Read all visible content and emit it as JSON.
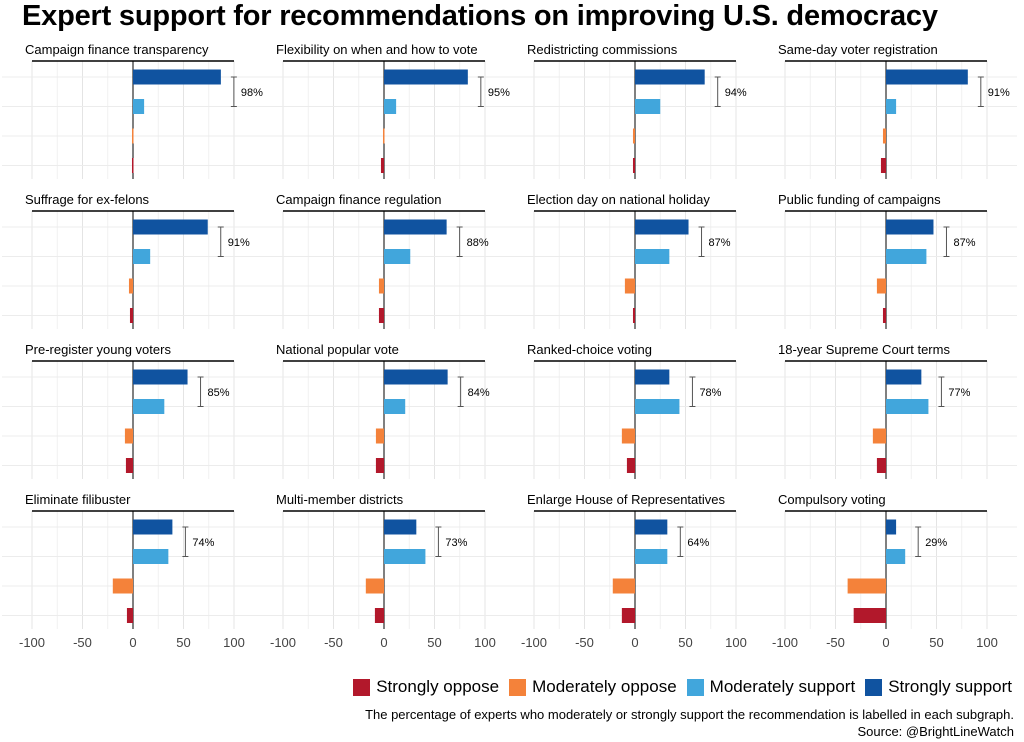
{
  "chart_data": {
    "type": "bar",
    "orientation": "horizontal",
    "title": "Expert support for recommendations on improving U.S. democracy",
    "categories": [
      "Strongly support",
      "Moderately support",
      "Moderately oppose",
      "Strongly oppose"
    ],
    "xlim": [
      -100,
      100
    ],
    "xticks": [
      "-100",
      "-50",
      "0",
      "50",
      "100"
    ],
    "grid": true,
    "legend_position": "bottom-right",
    "colors": {
      "Strongly oppose": "#b2182b",
      "Moderately oppose": "#f4823a",
      "Moderately support": "#41a6dc",
      "Strongly support": "#1053a0"
    },
    "legend": [
      "Strongly oppose",
      "Moderately oppose",
      "Moderately support",
      "Strongly support"
    ],
    "panels": [
      {
        "title": "Campaign finance transparency",
        "values": [
          87,
          11,
          -1,
          -1
        ],
        "label": "98%"
      },
      {
        "title": "Flexibility on when and how to vote",
        "values": [
          83,
          12,
          -1,
          -3
        ],
        "label": "95%"
      },
      {
        "title": "Redistricting commissions",
        "values": [
          69,
          25,
          -2,
          -2
        ],
        "label": "94%"
      },
      {
        "title": "Same-day voter registration",
        "values": [
          81,
          10,
          -3,
          -5
        ],
        "label": "91%"
      },
      {
        "title": "Suffrage for ex-felons",
        "values": [
          74,
          17,
          -4,
          -3
        ],
        "label": "91%"
      },
      {
        "title": "Campaign finance regulation",
        "values": [
          62,
          26,
          -5,
          -5
        ],
        "label": "88%"
      },
      {
        "title": "Election day on national holiday",
        "values": [
          53,
          34,
          -10,
          -2
        ],
        "label": "87%"
      },
      {
        "title": "Public funding of campaigns",
        "values": [
          47,
          40,
          -9,
          -3
        ],
        "label": "87%"
      },
      {
        "title": "Pre-register young voters",
        "values": [
          54,
          31,
          -8,
          -7
        ],
        "label": "85%"
      },
      {
        "title": "National popular vote",
        "values": [
          63,
          21,
          -8,
          -8
        ],
        "label": "84%"
      },
      {
        "title": "Ranked-choice voting",
        "values": [
          34,
          44,
          -13,
          -8
        ],
        "label": "78%"
      },
      {
        "title": "18-year Supreme Court terms",
        "values": [
          35,
          42,
          -13,
          -9
        ],
        "label": "77%"
      },
      {
        "title": "Eliminate filibuster",
        "values": [
          39,
          35,
          -20,
          -6
        ],
        "label": "74%"
      },
      {
        "title": "Multi-member districts",
        "values": [
          32,
          41,
          -18,
          -9
        ],
        "label": "73%"
      },
      {
        "title": "Enlarge House of Representatives",
        "values": [
          32,
          32,
          -22,
          -13
        ],
        "label": "64%"
      },
      {
        "title": "Compulsory voting",
        "values": [
          10,
          19,
          -38,
          -32
        ],
        "label": "29%"
      }
    ],
    "caption": "The percentage of experts who moderately or strongly support the recommendation is labelled in each subgraph.",
    "source": "Source: @BrightLineWatch"
  }
}
